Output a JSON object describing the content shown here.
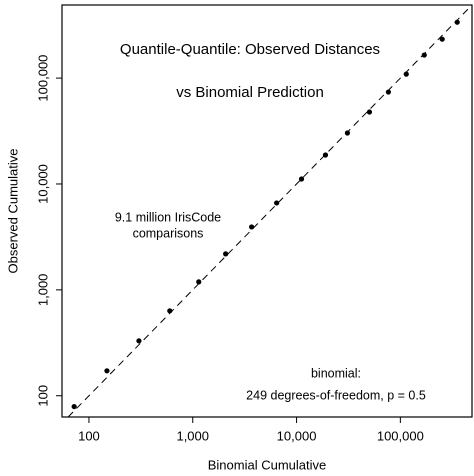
{
  "chart_data": {
    "type": "scatter",
    "annotations": [
      "Quantile-Quantile:  Observed Distances",
      "vs Binomial Prediction",
      "9.1 million IrisCode",
      "comparisons",
      "binomial:",
      "249 degrees-of-freedom,  p = 0.5"
    ],
    "x_label": "Binomial Cumulative",
    "y_label": "Observed Cumulative",
    "log_x": true,
    "log_y": true,
    "color": "#000000",
    "reference_line": "dashed",
    "x": [
      72,
      149,
      303,
      601,
      1142,
      2075,
      3690,
      6430,
      11170,
      19000,
      30900,
      50400,
      76700,
      114000,
      170000,
      253000,
      353000
    ],
    "values": [
      79,
      172,
      330,
      634,
      1190,
      2186,
      3930,
      6620,
      11140,
      18780,
      30300,
      47800,
      73800,
      109000,
      165000,
      233000,
      337000
    ],
    "xlim": [
      55,
      490000
    ],
    "ylim": [
      63,
      490000
    ],
    "xticks": [
      100,
      {
        "value": 1000,
        "label": "1,000"
      },
      {
        "value": 10000,
        "label": "10,000"
      },
      {
        "value": 100000,
        "label": "100,000"
      }
    ],
    "yticks": [
      100,
      {
        "value": 1000,
        "label": "1,000"
      },
      {
        "value": 10000,
        "label": "10,000"
      },
      {
        "value": 100000,
        "label": "100,000"
      }
    ]
  }
}
